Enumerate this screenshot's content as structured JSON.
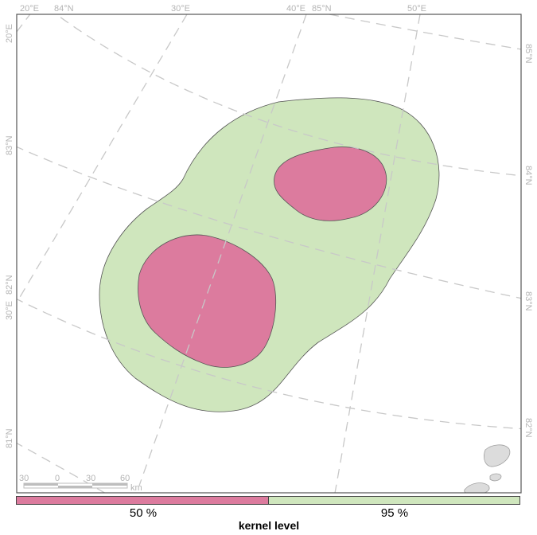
{
  "map": {
    "colors": {
      "level_50": "#dc7b9e",
      "level_95": "#cfe6bd",
      "land": "#dcdcdc",
      "graticule": "#c8c8c8",
      "frame": "#555555"
    },
    "graticule_labels": {
      "top": [
        "20°E",
        "84°N",
        "30°E",
        "40°E",
        "85°N",
        "50°E"
      ],
      "left": [
        "20°E",
        "83°N",
        "30°E",
        "82°N",
        "81°N"
      ],
      "right": [
        "85°N",
        "84°N",
        "83°N",
        "82°N"
      ]
    },
    "scale_bar": {
      "ticks": [
        "30",
        "0",
        "30",
        "60"
      ],
      "unit": "km"
    }
  },
  "legend": {
    "title": "kernel level",
    "items": [
      {
        "label": "50 %",
        "color": "#dc7b9e"
      },
      {
        "label": "95 %",
        "color": "#cfe6bd"
      }
    ]
  }
}
